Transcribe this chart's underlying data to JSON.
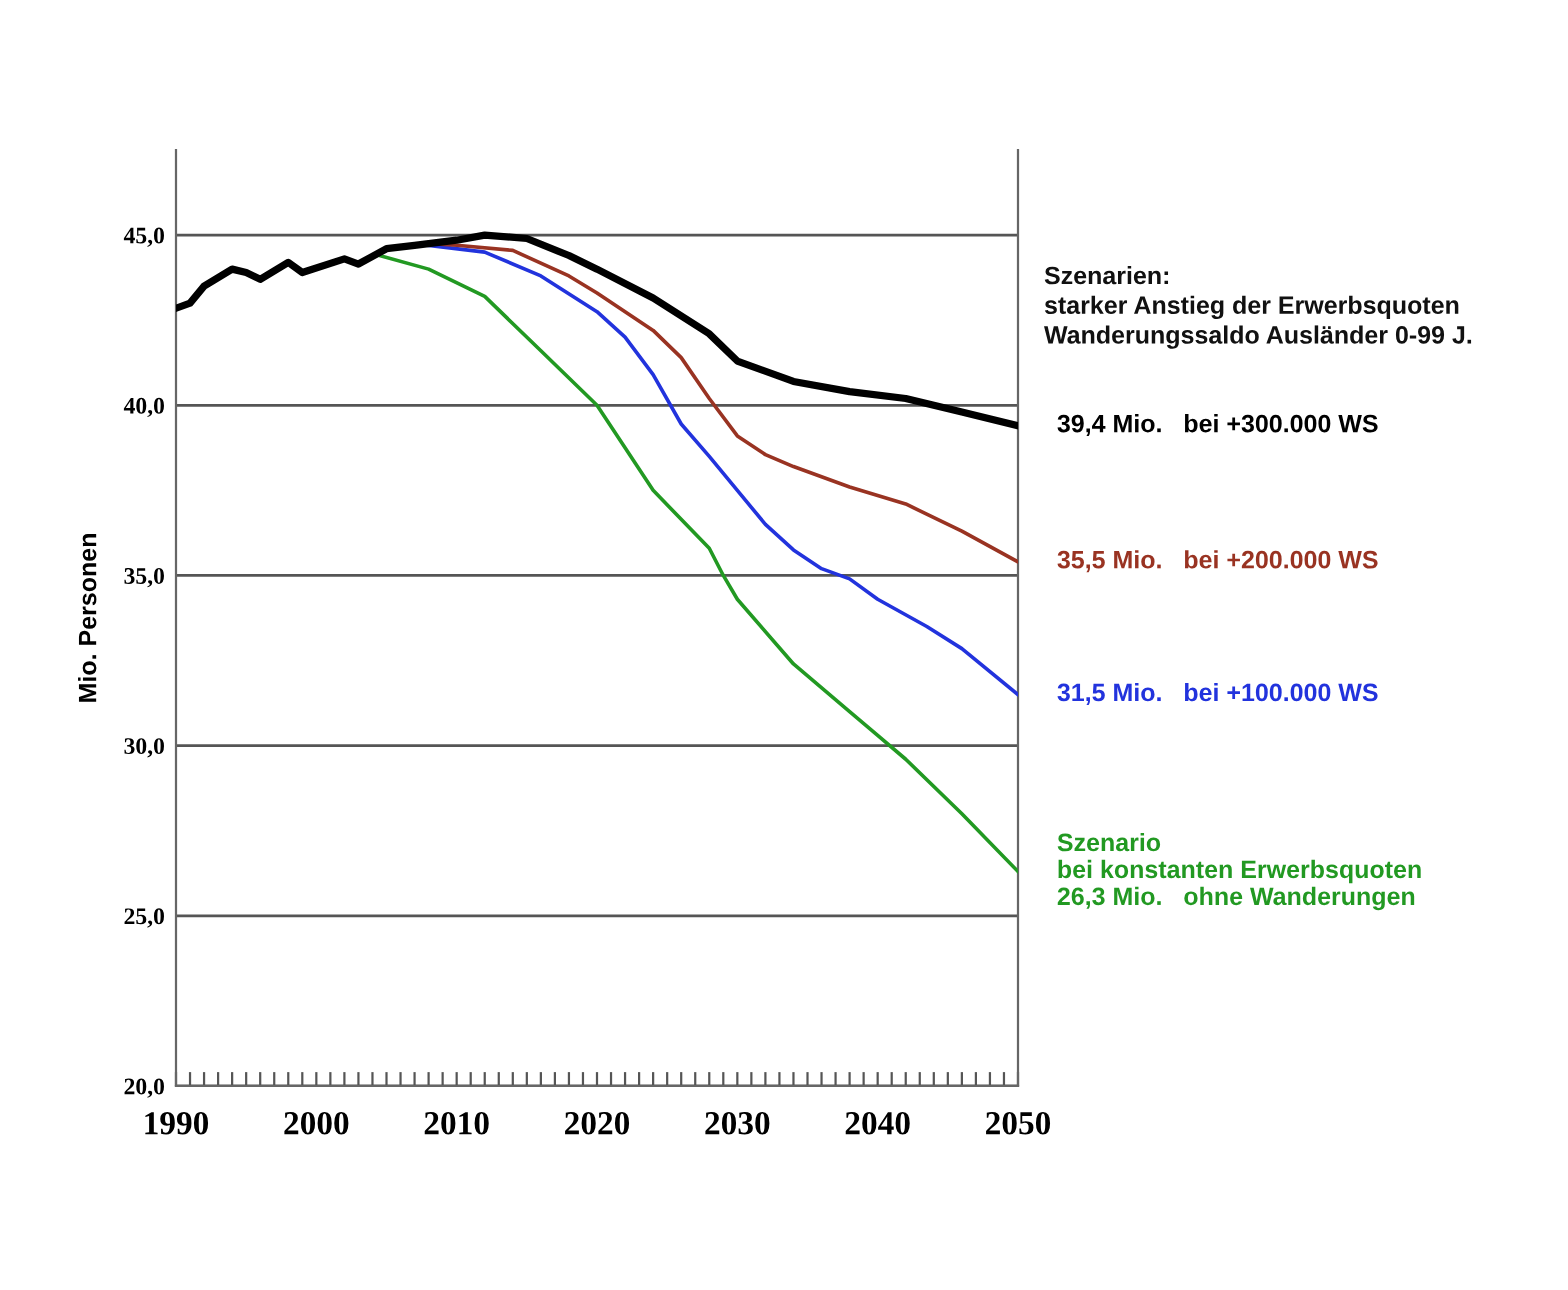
{
  "chart_data": {
    "type": "line",
    "ylabel": "Mio. Personen",
    "annotations": [
      "Szenarien:\nstarker Anstieg der Erwerbsquoten\nWanderungssaldo Ausländer 0-99 J."
    ],
    "xlim": [
      1990,
      2050
    ],
    "ylim": [
      20,
      47.5
    ],
    "xticks": [
      {
        "value": 1990,
        "label": "1990"
      },
      {
        "value": 1991,
        "label": null
      },
      {
        "value": 1992,
        "label": null
      },
      {
        "value": 1993,
        "label": null
      },
      {
        "value": 1994,
        "label": null
      },
      {
        "value": 1995,
        "label": null
      },
      {
        "value": 1996,
        "label": null
      },
      {
        "value": 1997,
        "label": null
      },
      {
        "value": 1998,
        "label": null
      },
      {
        "value": 1999,
        "label": null
      },
      {
        "value": 2000,
        "label": "2000"
      },
      {
        "value": 2001,
        "label": null
      },
      {
        "value": 2002,
        "label": null
      },
      {
        "value": 2003,
        "label": null
      },
      {
        "value": 2004,
        "label": null
      },
      {
        "value": 2005,
        "label": null
      },
      {
        "value": 2006,
        "label": null
      },
      {
        "value": 2007,
        "label": null
      },
      {
        "value": 2008,
        "label": null
      },
      {
        "value": 2009,
        "label": null
      },
      {
        "value": 2010,
        "label": "2010"
      },
      {
        "value": 2011,
        "label": null
      },
      {
        "value": 2012,
        "label": null
      },
      {
        "value": 2013,
        "label": null
      },
      {
        "value": 2014,
        "label": null
      },
      {
        "value": 2015,
        "label": null
      },
      {
        "value": 2016,
        "label": null
      },
      {
        "value": 2017,
        "label": null
      },
      {
        "value": 2018,
        "label": null
      },
      {
        "value": 2019,
        "label": null
      },
      {
        "value": 2020,
        "label": "2020"
      },
      {
        "value": 2021,
        "label": null
      },
      {
        "value": 2022,
        "label": null
      },
      {
        "value": 2023,
        "label": null
      },
      {
        "value": 2024,
        "label": null
      },
      {
        "value": 2025,
        "label": null
      },
      {
        "value": 2026,
        "label": null
      },
      {
        "value": 2027,
        "label": null
      },
      {
        "value": 2028,
        "label": null
      },
      {
        "value": 2029,
        "label": null
      },
      {
        "value": 2030,
        "label": "2030"
      },
      {
        "value": 2031,
        "label": null
      },
      {
        "value": 2032,
        "label": null
      },
      {
        "value": 2033,
        "label": null
      },
      {
        "value": 2034,
        "label": null
      },
      {
        "value": 2035,
        "label": null
      },
      {
        "value": 2036,
        "label": null
      },
      {
        "value": 2037,
        "label": null
      },
      {
        "value": 2038,
        "label": null
      },
      {
        "value": 2039,
        "label": null
      },
      {
        "value": 2040,
        "label": "2040"
      },
      {
        "value": 2041,
        "label": null
      },
      {
        "value": 2042,
        "label": null
      },
      {
        "value": 2043,
        "label": null
      },
      {
        "value": 2044,
        "label": null
      },
      {
        "value": 2045,
        "label": null
      },
      {
        "value": 2046,
        "label": null
      },
      {
        "value": 2047,
        "label": null
      },
      {
        "value": 2048,
        "label": null
      },
      {
        "value": 2049,
        "label": null
      },
      {
        "value": 2050,
        "label": "2050"
      }
    ],
    "yticks": [
      {
        "value": 20,
        "label": "20,0"
      },
      {
        "value": 25,
        "label": "25,0"
      },
      {
        "value": 30,
        "label": "30,0"
      },
      {
        "value": 35,
        "label": "35,0"
      },
      {
        "value": 40,
        "label": "40,0"
      },
      {
        "value": 45,
        "label": "45,0"
      }
    ],
    "grid": "y",
    "legend": false,
    "marker": "none",
    "line_style": "solid",
    "series": [
      {
        "name": "Szenario\nbei konstanten Erwerbsquoten\n26,3 Mio.   ohne Wanderungen",
        "color": "#229922",
        "x": [
          2004.5,
          2008,
          2012,
          2016,
          2020,
          2024,
          2028,
          2029,
          2030,
          2034,
          2038,
          2040,
          2042,
          2046,
          2050
        ],
        "values": [
          44.4,
          44.0,
          43.2,
          41.6,
          40.0,
          37.5,
          35.8,
          35.0,
          34.3,
          32.4,
          31.0,
          30.3,
          29.6,
          28.0,
          26.3
        ]
      },
      {
        "name": "31,5 Mio.   bei +100.000 WS",
        "color": "#2233dd",
        "x": [
          2008,
          2012,
          2016,
          2020,
          2022,
          2024,
          2026,
          2028,
          2030,
          2032,
          2034,
          2036,
          2038,
          2040,
          2043.5,
          2046,
          2050
        ],
        "values": [
          44.7,
          44.5,
          43.8,
          42.75,
          42.0,
          40.9,
          39.45,
          38.5,
          37.5,
          36.5,
          35.75,
          35.2,
          34.9,
          34.3,
          33.5,
          32.85,
          31.5
        ]
      },
      {
        "name": "35,5 Mio.   bei +200.000 WS",
        "color": "#993322",
        "x": [
          2008,
          2010,
          2014,
          2018,
          2020,
          2024,
          2026,
          2028,
          2030,
          2032,
          2034,
          2038,
          2042,
          2046,
          2050
        ],
        "values": [
          44.75,
          44.7,
          44.55,
          43.8,
          43.3,
          42.2,
          41.4,
          40.2,
          39.1,
          38.55,
          38.2,
          37.6,
          37.1,
          36.3,
          35.4
        ]
      },
      {
        "name": "39,4 Mio.   bei +300.000 WS",
        "color": "#000000",
        "x": [
          1990,
          1991,
          1992,
          1994,
          1995,
          1996,
          1998,
          1999,
          2002,
          2003,
          2005,
          2007,
          2010,
          2012,
          2015,
          2018,
          2020,
          2024,
          2028,
          2030,
          2034,
          2038,
          2042,
          2046,
          2050
        ],
        "values": [
          42.85,
          43.0,
          43.5,
          44.0,
          43.9,
          43.7,
          44.2,
          43.9,
          44.3,
          44.15,
          44.6,
          44.7,
          44.85,
          45.0,
          44.9,
          44.4,
          44.0,
          43.15,
          42.1,
          41.3,
          40.7,
          40.4,
          40.2,
          39.8,
          39.4
        ]
      }
    ]
  }
}
